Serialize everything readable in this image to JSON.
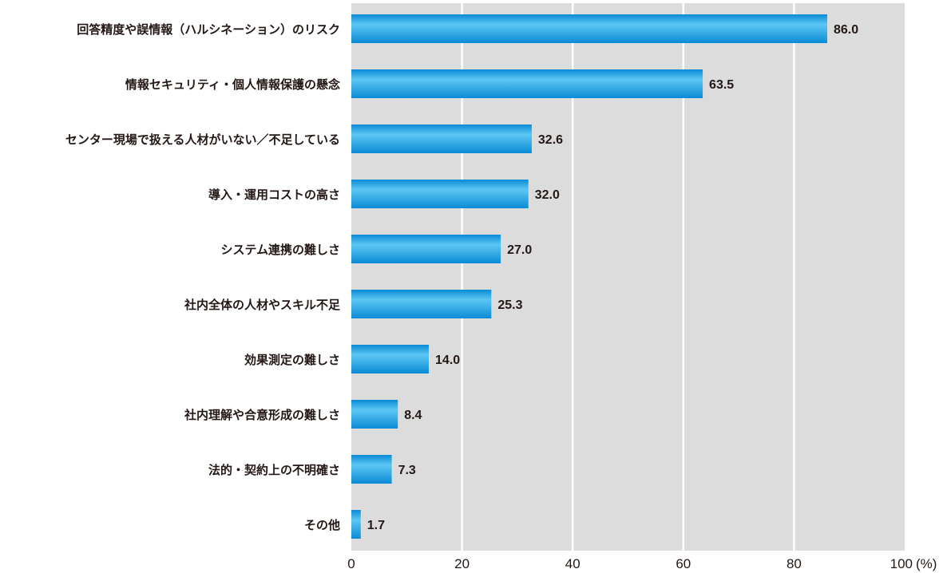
{
  "chart_data": {
    "type": "bar",
    "orientation": "horizontal",
    "categories": [
      "回答精度や誤情報（ハルシネーション）のリスク",
      "情報セキュリティ・個人情報保護の懸念",
      "センター現場で扱える人材がいない／不足している",
      "導入・運用コストの高さ",
      "システム連携の難しさ",
      "社内全体の人材やスキル不足",
      "効果測定の難しさ",
      "社内理解や合意形成の難しさ",
      "法的・契約上の不明確さ",
      "その他"
    ],
    "values": [
      86.0,
      63.5,
      32.6,
      32.0,
      27.0,
      25.3,
      14.0,
      8.4,
      7.3,
      1.7
    ],
    "value_labels": [
      "86.0",
      "63.5",
      "32.6",
      "32.0",
      "27.0",
      "25.3",
      "14.0",
      "8.4",
      "7.3",
      "1.7"
    ],
    "xlim": [
      0,
      100
    ],
    "xticks": [
      "0",
      "20",
      "40",
      "60",
      "80",
      "100"
    ],
    "xunit": "(%)",
    "grid": true,
    "colors": {
      "bar_light": "#5cc6f2",
      "bar_dark": "#0a8bd6",
      "plot_bg": "#dcdcdc",
      "grid": "#ffffff"
    }
  }
}
